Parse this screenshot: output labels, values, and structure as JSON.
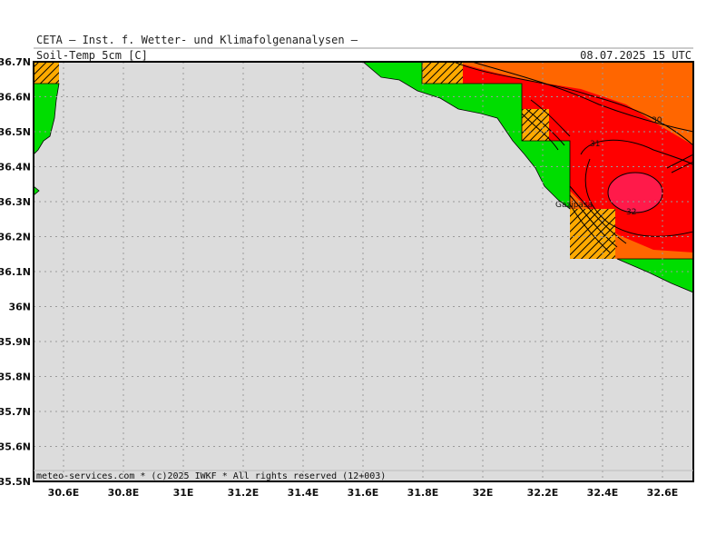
{
  "header": {
    "title": "CETA – Inst. f. Wetter- und Klimafolgenanalysen –",
    "product": "Soil-Temp_5cm [C]",
    "datetime": "08.07.2025 15 UTC"
  },
  "map": {
    "lat_ticks": [
      "36.7N",
      "36.6N",
      "36.5N",
      "36.4N",
      "36.3N",
      "36.2N",
      "36.1N",
      "36N",
      "35.9N",
      "35.8N",
      "35.7N",
      "35.6N",
      "35.5N"
    ],
    "lon_ticks": [
      "30.6E",
      "30.8E",
      "31E",
      "31.2E",
      "31.4E",
      "31.6E",
      "31.8E",
      "32E",
      "32.2E",
      "32.4E",
      "32.6E"
    ],
    "contour_labels": {
      "c30": "30",
      "c31": "31",
      "c32": "32"
    },
    "place": "Gazipasa",
    "copyright": "meteo-services.com * (c)2025 IWKF * All rights reserved (12+003)",
    "colors": {
      "sea": "#dcdcdc",
      "land_green": "#00dd00",
      "temp_orange": "#ff6600",
      "temp_red": "#ff0000",
      "temp_hot": "#ff1a4a",
      "hatch_yellow": "#ffaa00"
    }
  }
}
